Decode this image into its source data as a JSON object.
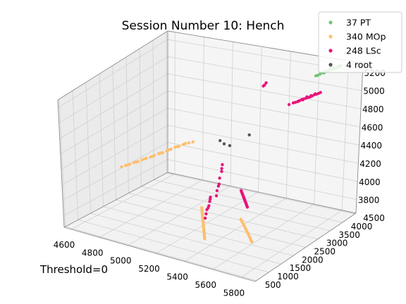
{
  "chart_data": {
    "type": "scatter",
    "title": "Session Number 10: Hench",
    "annotation": "Threshold=0",
    "projection": "3d",
    "grid": true,
    "legend_position": "top-right",
    "xlim": [
      4550,
      5900
    ],
    "ylim": [
      450,
      4550
    ],
    "zlim": [
      3650,
      5300
    ],
    "x_ticks": [
      "4600",
      "4800",
      "5000",
      "5200",
      "5400",
      "5600",
      "5800"
    ],
    "y_ticks": [
      "500",
      "1000",
      "1500",
      "2000",
      "2500",
      "3000",
      "3500",
      "4000",
      "4500"
    ],
    "z_ticks": [
      "3800",
      "4000",
      "4200",
      "4400",
      "4600",
      "4800",
      "5000",
      "5200"
    ],
    "series": [
      {
        "name": "37 PT",
        "color": "#74c476",
        "points": [
          [
            5720,
            4400,
            5220
          ],
          [
            5740,
            4450,
            5230
          ],
          [
            5700,
            4350,
            5210
          ],
          [
            5680,
            4300,
            5190
          ],
          [
            5660,
            4250,
            5180
          ],
          [
            5750,
            4480,
            5240
          ],
          [
            5710,
            4380,
            5230
          ],
          [
            5690,
            4320,
            5205
          ],
          [
            5670,
            4280,
            5195
          ],
          [
            5730,
            4420,
            5225
          ],
          [
            5650,
            4220,
            5170
          ],
          [
            5760,
            4500,
            5250
          ],
          [
            5705,
            4360,
            5215
          ],
          [
            5685,
            4330,
            5200
          ],
          [
            5725,
            4410,
            5235
          ],
          [
            5640,
            4200,
            5165
          ],
          [
            5745,
            4470,
            5245
          ],
          [
            5695,
            4340,
            5208
          ],
          [
            5715,
            4390,
            5222
          ],
          [
            5675,
            4290,
            5188
          ]
        ]
      },
      {
        "name": "340 MOp",
        "color": "#fdbf6f",
        "points": [
          [
            4950,
            2950,
            4400
          ],
          [
            4930,
            2900,
            4380
          ],
          [
            4910,
            2850,
            4370
          ],
          [
            4890,
            2800,
            4350
          ],
          [
            4870,
            2750,
            4330
          ],
          [
            4850,
            2700,
            4310
          ],
          [
            4830,
            2650,
            4300
          ],
          [
            4810,
            2600,
            4280
          ],
          [
            4790,
            2550,
            4260
          ],
          [
            4770,
            2500,
            4250
          ],
          [
            4750,
            2450,
            4230
          ],
          [
            4730,
            2400,
            4210
          ],
          [
            4710,
            2350,
            4200
          ],
          [
            4690,
            2300,
            4180
          ],
          [
            4670,
            2250,
            4165
          ],
          [
            4650,
            2200,
            4150
          ],
          [
            4980,
            3000,
            4420
          ],
          [
            5000,
            3050,
            4430
          ],
          [
            4960,
            2980,
            4410
          ],
          [
            4920,
            2880,
            4375
          ],
          [
            4880,
            2780,
            4340
          ],
          [
            4840,
            2680,
            4305
          ],
          [
            4800,
            2580,
            4270
          ],
          [
            4760,
            2480,
            4240
          ],
          [
            4720,
            2380,
            4205
          ],
          [
            4680,
            2280,
            4172
          ],
          [
            5320,
            1600,
            4050
          ],
          [
            5325,
            1580,
            4030
          ],
          [
            5330,
            1560,
            4010
          ],
          [
            5335,
            1540,
            3990
          ],
          [
            5340,
            1520,
            3970
          ],
          [
            5345,
            1500,
            3950
          ],
          [
            5350,
            1480,
            3930
          ],
          [
            5355,
            1460,
            3910
          ],
          [
            5360,
            1440,
            3890
          ],
          [
            5365,
            1420,
            3870
          ],
          [
            5370,
            1400,
            3850
          ],
          [
            5375,
            1380,
            3830
          ],
          [
            5380,
            1360,
            3810
          ],
          [
            5385,
            1340,
            3790
          ],
          [
            5390,
            1320,
            3770
          ],
          [
            5322,
            1590,
            4040
          ],
          [
            5332,
            1550,
            4000
          ],
          [
            5342,
            1510,
            3960
          ],
          [
            5352,
            1470,
            3920
          ],
          [
            5362,
            1430,
            3880
          ],
          [
            5372,
            1390,
            3840
          ],
          [
            5382,
            1350,
            3800
          ],
          [
            5392,
            1310,
            3760
          ],
          [
            5328,
            1570,
            4020
          ],
          [
            5338,
            1530,
            3980
          ],
          [
            5348,
            1490,
            3940
          ],
          [
            5358,
            1450,
            3900
          ],
          [
            5368,
            1410,
            3860
          ],
          [
            5378,
            1370,
            3820
          ],
          [
            5388,
            1330,
            3780
          ],
          [
            5500,
            2150,
            3880
          ],
          [
            5520,
            2100,
            3860
          ],
          [
            5540,
            2050,
            3840
          ],
          [
            5560,
            2000,
            3820
          ],
          [
            5580,
            1950,
            3800
          ],
          [
            5600,
            1900,
            3780
          ],
          [
            5620,
            1850,
            3760
          ],
          [
            5640,
            1800,
            3740
          ],
          [
            5510,
            2120,
            3870
          ],
          [
            5530,
            2080,
            3850
          ],
          [
            5550,
            2030,
            3830
          ],
          [
            5570,
            1980,
            3810
          ],
          [
            5590,
            1930,
            3790
          ],
          [
            5610,
            1880,
            3770
          ],
          [
            5630,
            1820,
            3750
          ]
        ]
      },
      {
        "name": "248 LSc",
        "color": "#e7157a",
        "points": [
          [
            5600,
            3900,
            4950
          ],
          [
            5620,
            3950,
            4960
          ],
          [
            5640,
            4000,
            4970
          ],
          [
            5580,
            3850,
            4930
          ],
          [
            5560,
            3800,
            4920
          ],
          [
            5660,
            4050,
            4990
          ],
          [
            5680,
            4100,
            5000
          ],
          [
            5540,
            3750,
            4905
          ],
          [
            5610,
            3920,
            4955
          ],
          [
            5630,
            3980,
            4965
          ],
          [
            5650,
            4020,
            4980
          ],
          [
            5590,
            3870,
            4940
          ],
          [
            5570,
            3820,
            4925
          ],
          [
            5670,
            4070,
            4995
          ],
          [
            5690,
            4120,
            5010
          ],
          [
            5605,
            3910,
            4945
          ],
          [
            5625,
            3960,
            4975
          ],
          [
            5645,
            4010,
            4985
          ],
          [
            5585,
            3860,
            4935
          ],
          [
            5665,
            4060,
            5000
          ],
          [
            5350,
            3850,
            5050
          ],
          [
            5355,
            3880,
            5070
          ],
          [
            5345,
            3830,
            5040
          ],
          [
            5330,
            2350,
            4420
          ],
          [
            5335,
            2300,
            4350
          ],
          [
            5330,
            2250,
            4280
          ],
          [
            5335,
            2200,
            4220
          ],
          [
            5330,
            2150,
            4150
          ],
          [
            5335,
            2100,
            4100
          ],
          [
            5332,
            2320,
            4380
          ],
          [
            5334,
            2180,
            4200
          ],
          [
            5328,
            1900,
            4120
          ],
          [
            5332,
            1850,
            4080
          ],
          [
            5335,
            1800,
            4040
          ],
          [
            5330,
            1750,
            4000
          ],
          [
            5333,
            1700,
            3960
          ],
          [
            5336,
            1650,
            3920
          ],
          [
            5330,
            1880,
            4100
          ],
          [
            5334,
            1780,
            4020
          ],
          [
            5420,
            2600,
            4100
          ],
          [
            5430,
            2580,
            4080
          ],
          [
            5440,
            2560,
            4060
          ],
          [
            5450,
            2540,
            4040
          ],
          [
            5460,
            2520,
            4020
          ],
          [
            5470,
            2500,
            4000
          ],
          [
            5480,
            2480,
            3980
          ],
          [
            5490,
            2460,
            3960
          ],
          [
            5425,
            2590,
            4090
          ],
          [
            5435,
            2570,
            4070
          ],
          [
            5445,
            2550,
            4050
          ],
          [
            5455,
            2530,
            4030
          ],
          [
            5465,
            2510,
            4010
          ],
          [
            5475,
            2490,
            3990
          ],
          [
            5485,
            2470,
            3970
          ]
        ]
      },
      {
        "name": "4 root",
        "color": "#555555",
        "points": [
          [
            5180,
            3100,
            4500
          ],
          [
            5200,
            3150,
            4460
          ],
          [
            5230,
            3200,
            4440
          ],
          [
            5330,
            3400,
            4560
          ]
        ]
      }
    ]
  }
}
